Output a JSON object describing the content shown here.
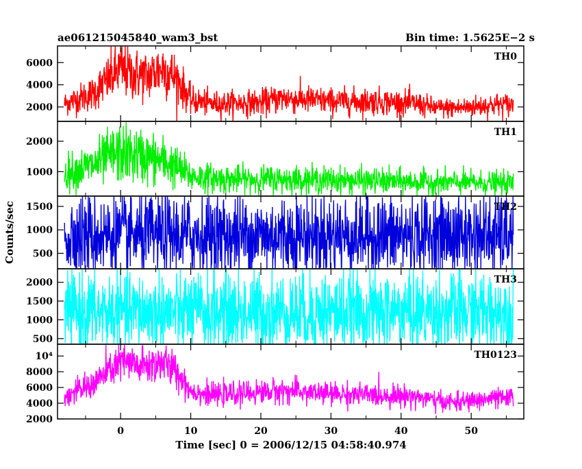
{
  "header": {
    "left_title": "ae061215045840_wam3_bst",
    "right_title": "Bin time: 1.5625E−2 s"
  },
  "axes": {
    "x_label": "Time [sec] 0 = 2006/12/15 04:58:40.974",
    "y_label": "Counts/sec"
  },
  "chart_data": {
    "type": "line",
    "title": "ae061215045840_wam3_bst",
    "subtitle": "Bin time: 1.5625E−2 s",
    "xlabel": "Time [sec] 0 = 2006/12/15 04:58:40.974",
    "ylabel": "Counts/sec",
    "xlim": [
      -9,
      57.5
    ],
    "x_ticks": [
      0,
      10,
      20,
      30,
      40,
      50
    ],
    "data_x_range": [
      -8,
      56
    ],
    "grid": false,
    "legend": "none",
    "panels": [
      {
        "name": "TH0",
        "color": "#ff0000",
        "ylim": [
          700,
          7500
        ],
        "y_ticks": [
          2000,
          4000,
          6000
        ],
        "y_tick_labels": [
          "2000",
          "4000",
          "6000"
        ],
        "noise_frac": 0.24,
        "profile": [
          [
            -8,
            2300
          ],
          [
            -4,
            3200
          ],
          [
            -1,
            4900
          ],
          [
            0,
            5400
          ],
          [
            2,
            4900
          ],
          [
            4,
            4800
          ],
          [
            6,
            5500
          ],
          [
            8,
            4600
          ],
          [
            10,
            2600
          ],
          [
            13,
            2300
          ],
          [
            20,
            2400
          ],
          [
            23,
            2800
          ],
          [
            30,
            2500
          ],
          [
            37,
            2500
          ],
          [
            42,
            2300
          ],
          [
            45,
            1900
          ],
          [
            48,
            1900
          ],
          [
            53,
            2200
          ],
          [
            56,
            2200
          ]
        ]
      },
      {
        "name": "TH1",
        "color": "#00ee00",
        "ylim": [
          200,
          2650
        ],
        "y_ticks": [
          1000,
          2000
        ],
        "y_tick_labels": [
          "1000",
          "2000"
        ],
        "noise_frac": 0.3,
        "profile": [
          [
            -8,
            950
          ],
          [
            -4,
            1200
          ],
          [
            -1,
            1550
          ],
          [
            0,
            1600
          ],
          [
            3,
            1500
          ],
          [
            6,
            1350
          ],
          [
            8,
            1150
          ],
          [
            10,
            850
          ],
          [
            15,
            750
          ],
          [
            25,
            750
          ],
          [
            35,
            700
          ],
          [
            45,
            650
          ],
          [
            56,
            620
          ]
        ]
      },
      {
        "name": "TH2",
        "color": "#0000dd",
        "ylim": [
          170,
          1720
        ],
        "y_ticks": [
          500,
          1000,
          1500
        ],
        "y_tick_labels": [
          "500",
          "1000",
          "1500"
        ],
        "noise_frac": 0.5,
        "profile": [
          [
            -8,
            880
          ],
          [
            56,
            880
          ]
        ]
      },
      {
        "name": "TH3",
        "color": "#00ffff",
        "ylim": [
          350,
          2360
        ],
        "y_ticks": [
          500,
          1000,
          1500,
          2000
        ],
        "y_tick_labels": [
          "500",
          "1000",
          "1500",
          "2000"
        ],
        "noise_frac": 0.45,
        "profile": [
          [
            -8,
            1200
          ],
          [
            56,
            1200
          ]
        ]
      },
      {
        "name": "TH0123",
        "color": "#ff00ff",
        "ylim": [
          2000,
          11500
        ],
        "y_ticks": [
          2000,
          4000,
          6000,
          8000,
          10000
        ],
        "y_tick_labels": [
          "2000",
          "4000",
          "6000",
          "8000",
          "10⁴"
        ],
        "noise_frac": 0.14,
        "profile": [
          [
            -8,
            4800
          ],
          [
            -4,
            6400
          ],
          [
            -1,
            8600
          ],
          [
            0,
            9300
          ],
          [
            3,
            8600
          ],
          [
            6,
            9200
          ],
          [
            8,
            8000
          ],
          [
            10,
            5600
          ],
          [
            13,
            5000
          ],
          [
            20,
            5400
          ],
          [
            23,
            5600
          ],
          [
            30,
            5200
          ],
          [
            37,
            5000
          ],
          [
            42,
            4900
          ],
          [
            45,
            4300
          ],
          [
            48,
            4100
          ],
          [
            53,
            4600
          ],
          [
            56,
            4600
          ]
        ]
      }
    ]
  }
}
